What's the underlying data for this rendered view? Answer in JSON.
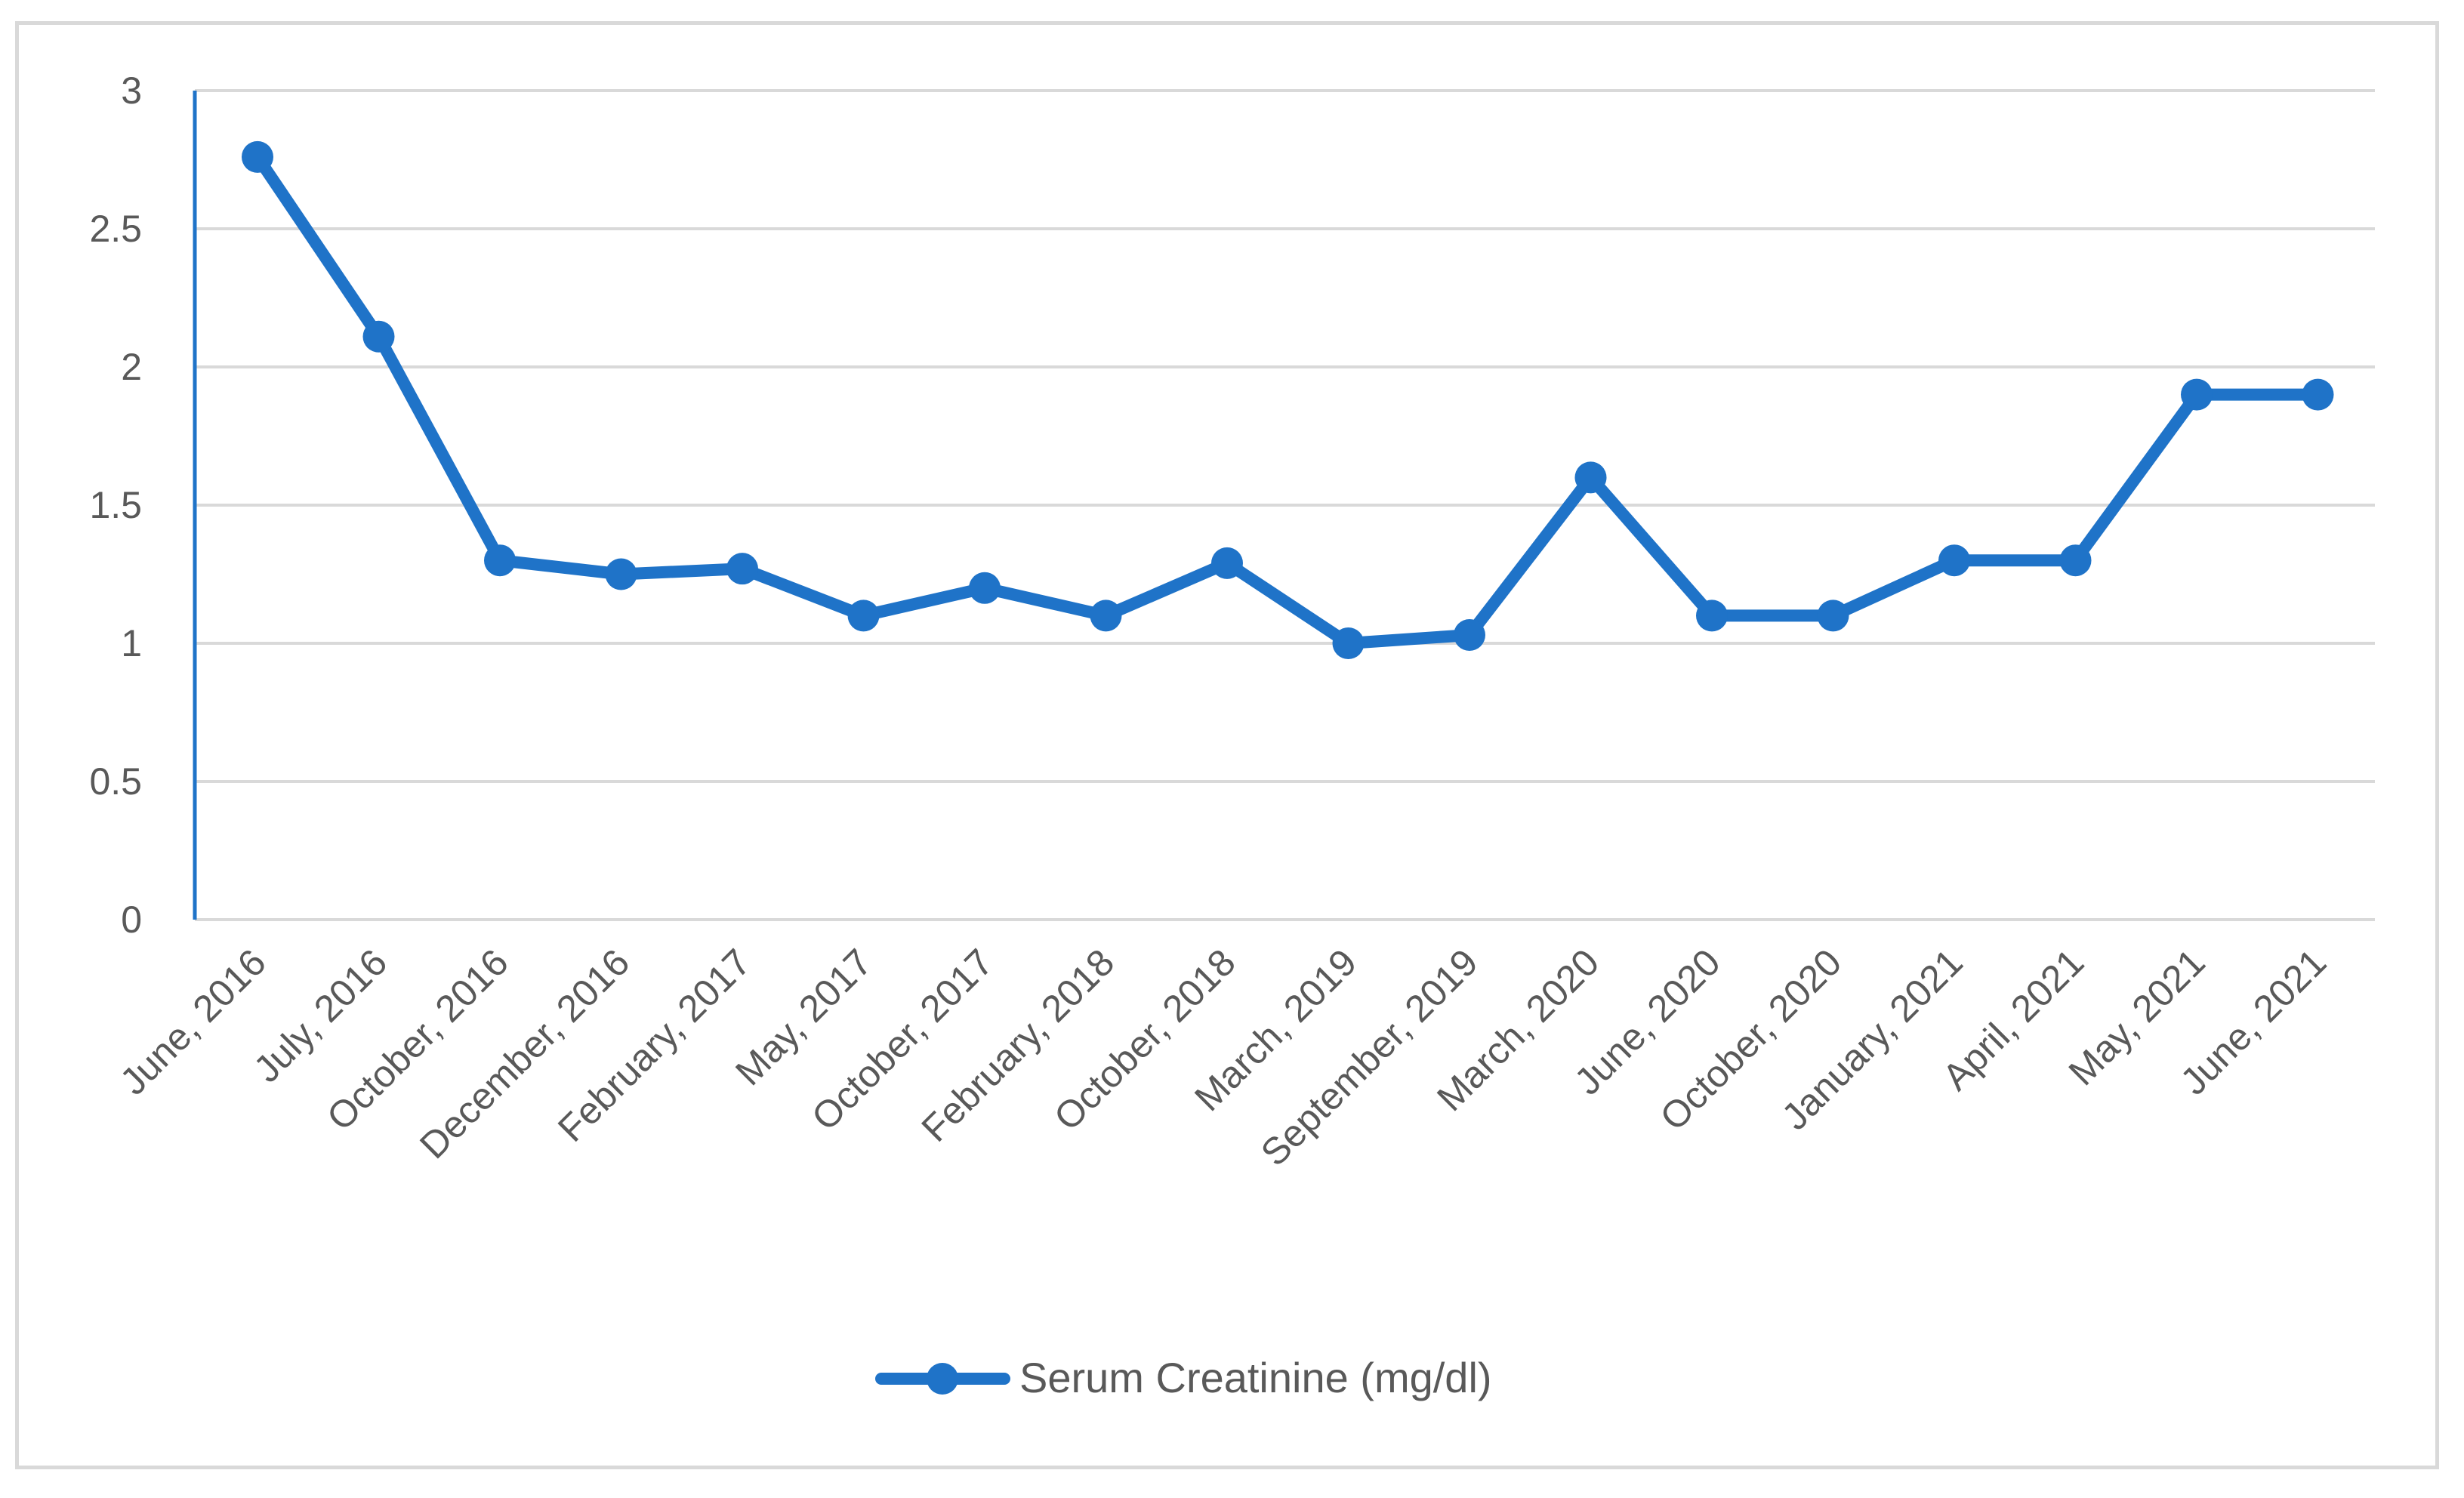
{
  "chart_data": {
    "type": "line",
    "title": "",
    "xlabel": "",
    "ylabel": "",
    "categories": [
      "June, 2016",
      "July, 2016",
      "October, 2016",
      "December, 2016",
      "February, 2017",
      "May, 2017",
      "October, 2017",
      "February, 2018",
      "October, 2018",
      "March, 2019",
      "September, 2019",
      "March, 2020",
      "June, 2020",
      "October, 2020",
      "January, 2021",
      "April, 2021",
      "May, 2021",
      "June, 2021"
    ],
    "series": [
      {
        "name": "Serum Creatinine (mg/dl)",
        "color": "#1f73c8",
        "values": [
          2.76,
          2.11,
          1.3,
          1.25,
          1.27,
          1.1,
          1.2,
          1.1,
          1.29,
          1.0,
          1.03,
          1.6,
          1.1,
          1.1,
          1.3,
          1.3,
          1.9,
          1.9
        ]
      }
    ],
    "ylim": [
      0,
      3
    ],
    "yticks": [
      "0",
      "0.5",
      "1",
      "1.5",
      "2",
      "2.5",
      "3"
    ],
    "grid": true,
    "legend_position": "bottom",
    "colors": {
      "gridline": "#d9d9d9",
      "axis_line": "#1f73c8",
      "tick_text": "#595959",
      "frame": "#d9d9d9"
    }
  }
}
